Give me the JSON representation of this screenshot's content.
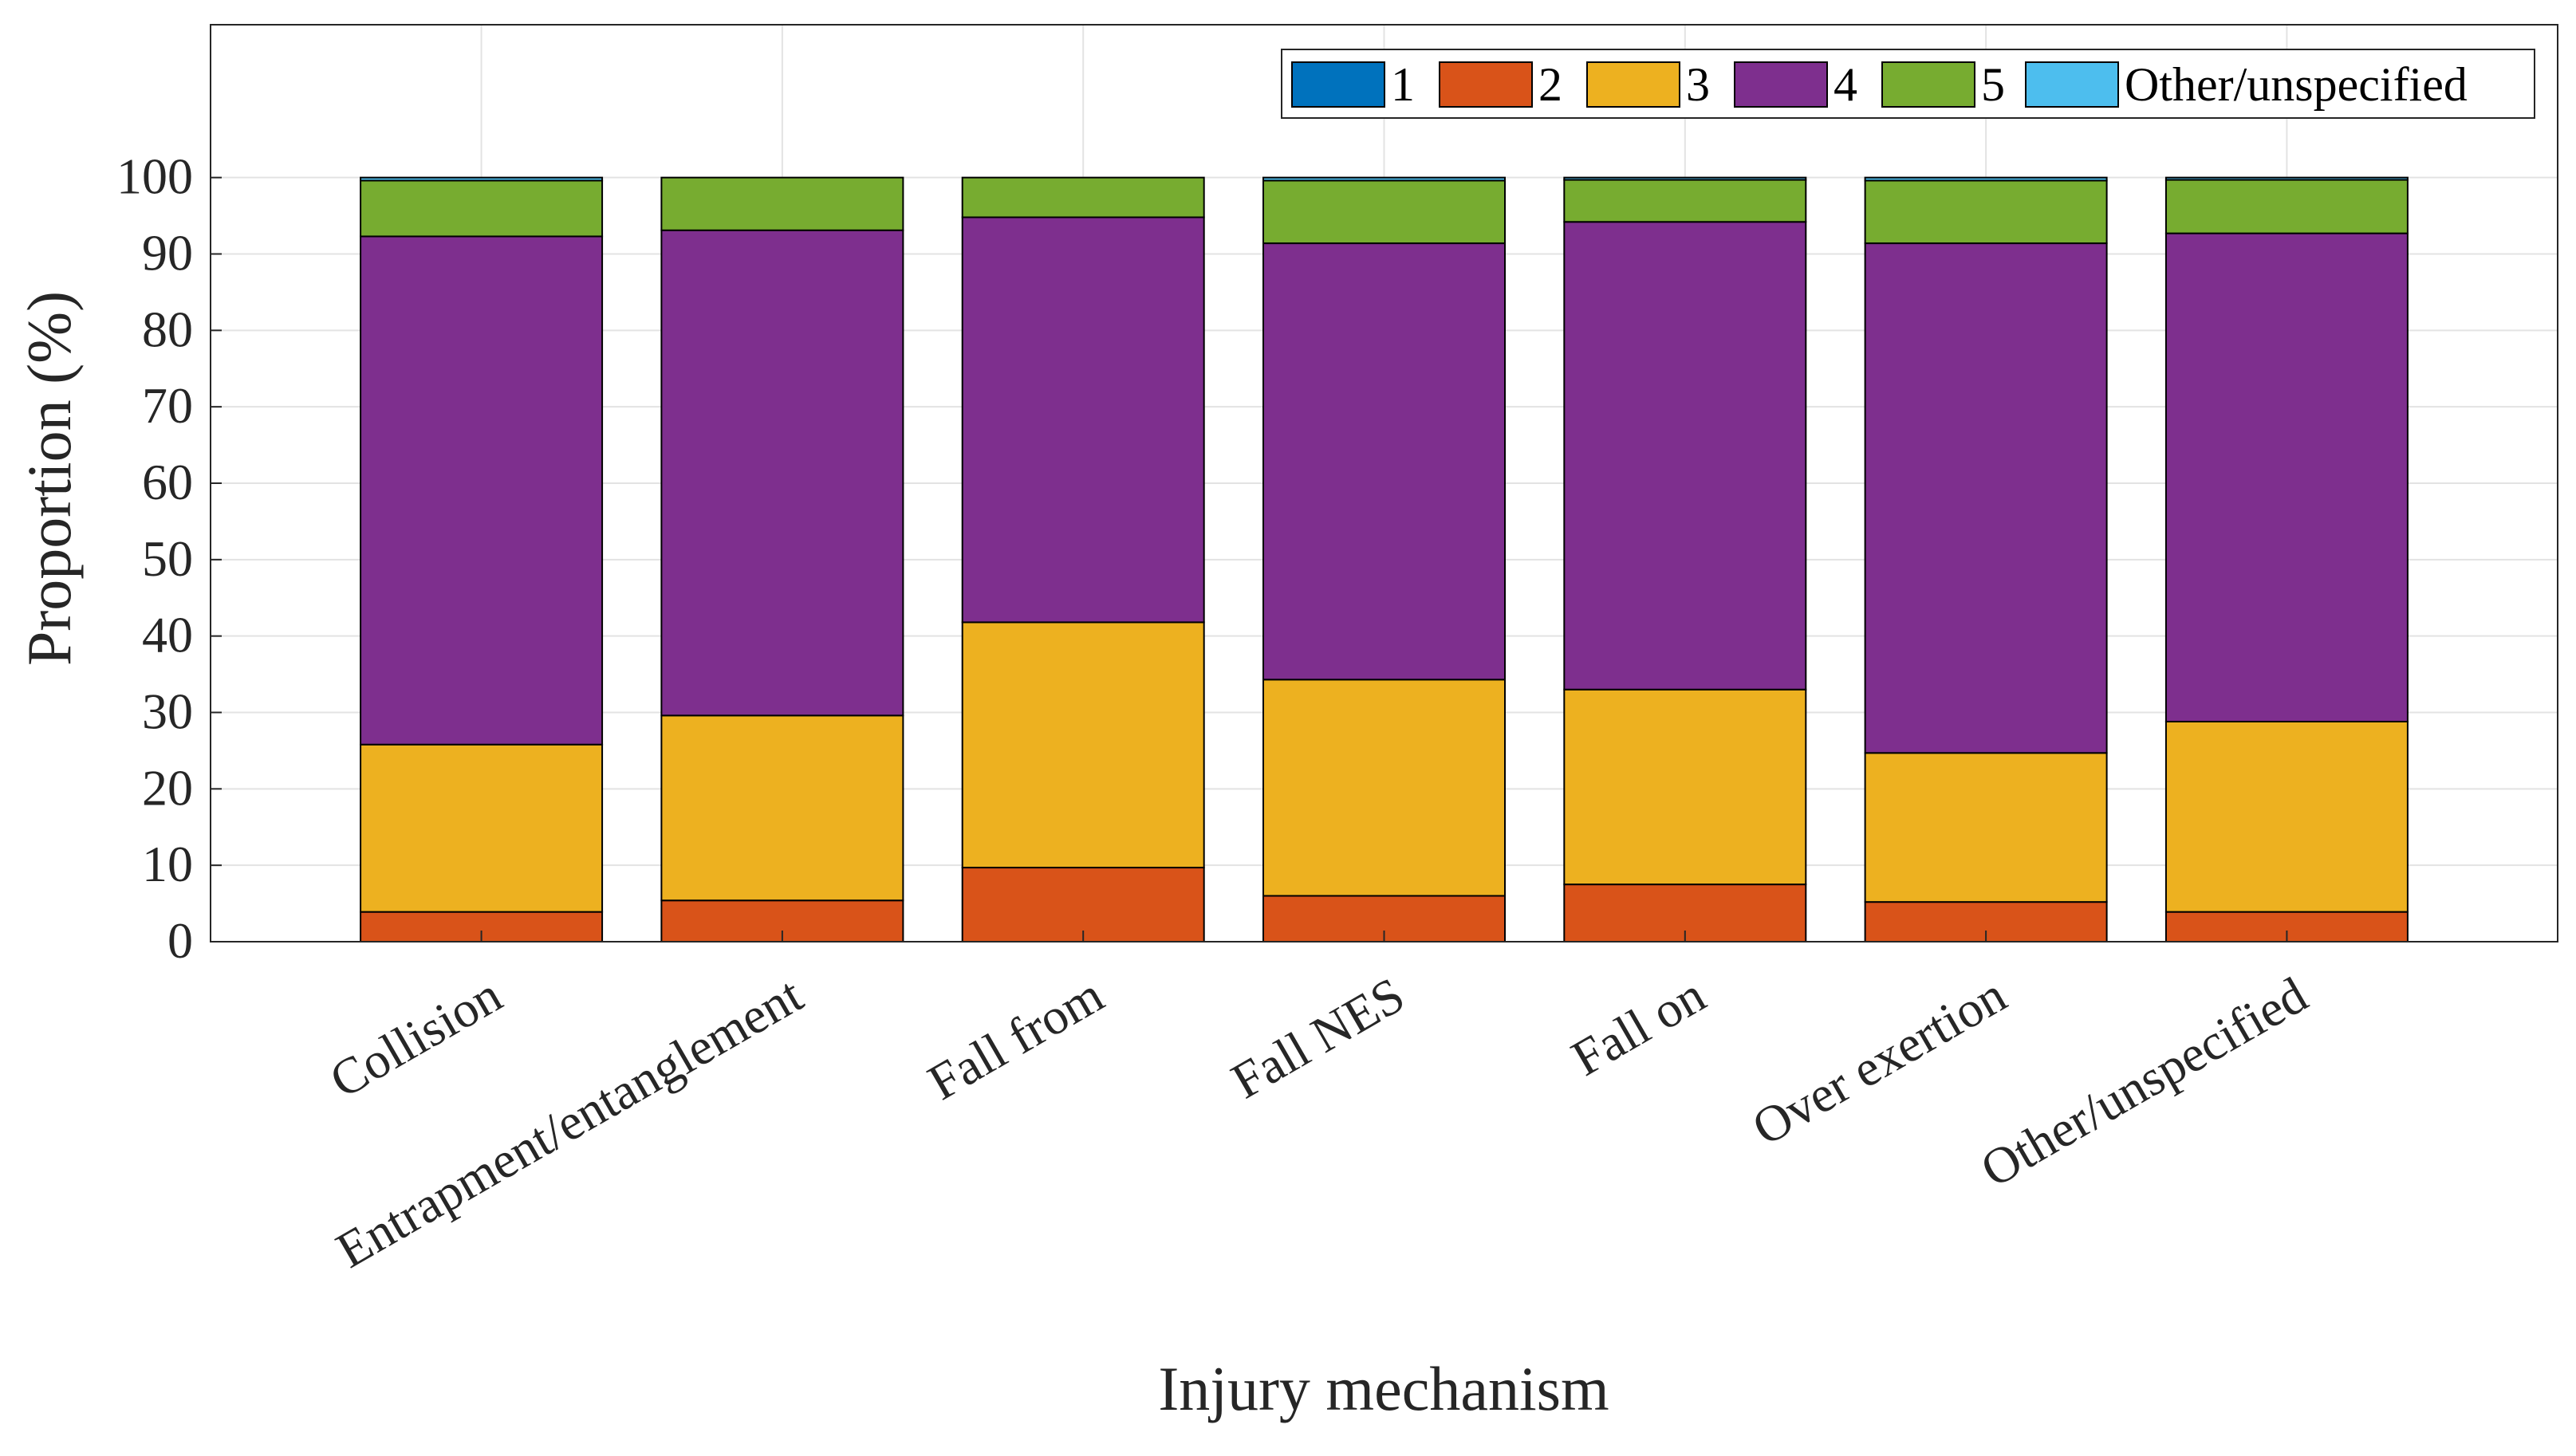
{
  "chart_data": {
    "type": "bar",
    "stacked": true,
    "title": "",
    "xlabel": "Injury mechanism",
    "ylabel": "Proportion (%)",
    "ylim": [
      0,
      120
    ],
    "xlim": [
      0.1,
      7.9
    ],
    "yticks": [
      0,
      10,
      20,
      30,
      40,
      50,
      60,
      70,
      80,
      90,
      100
    ],
    "grid": true,
    "legend_position": "top-right",
    "categories": [
      "Collision",
      "Entrapment/entanglement",
      "Fall from",
      "Fall NES",
      "Fall on",
      "Over exertion",
      "Other/unspecified"
    ],
    "series": [
      {
        "name": "1",
        "color": "#0072BD",
        "values": [
          0,
          0,
          0,
          0,
          0,
          0,
          0
        ]
      },
      {
        "name": "2",
        "color": "#D95319",
        "values": [
          3.9,
          5.4,
          9.7,
          6.0,
          7.5,
          5.2,
          3.9
        ]
      },
      {
        "name": "3",
        "color": "#EDB120",
        "values": [
          21.9,
          24.2,
          32.1,
          28.3,
          25.5,
          19.5,
          24.9
        ]
      },
      {
        "name": "4",
        "color": "#7E2F8E",
        "values": [
          66.5,
          63.5,
          53.0,
          57.1,
          61.2,
          66.7,
          63.9
        ]
      },
      {
        "name": "5",
        "color": "#77AC30",
        "values": [
          7.3,
          6.9,
          5.2,
          8.2,
          5.5,
          8.2,
          7.0
        ]
      },
      {
        "name": "Other/unspecified",
        "color": "#4DBEEE",
        "values": [
          0.4,
          0,
          0,
          0.4,
          0.3,
          0.4,
          0.3
        ]
      }
    ]
  }
}
